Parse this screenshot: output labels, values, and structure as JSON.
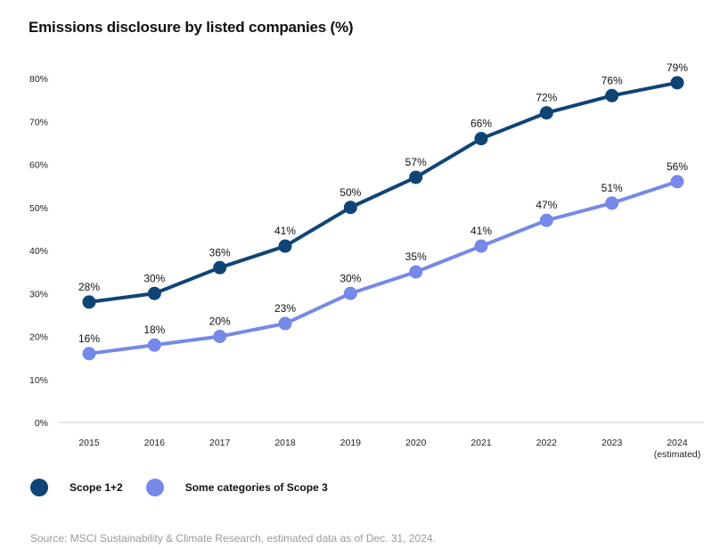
{
  "chart_data": {
    "type": "line",
    "title": "Emissions disclosure by listed companies (%)",
    "xlabel": "",
    "ylabel": "",
    "categories": [
      "2015",
      "2016",
      "2017",
      "2018",
      "2019",
      "2020",
      "2021",
      "2022",
      "2023",
      "2024"
    ],
    "category_sublabels": [
      "",
      "",
      "",
      "",
      "",
      "",
      "",
      "",
      "",
      "(estimated)"
    ],
    "yticks": [
      "0%",
      "10%",
      "20%",
      "30%",
      "40%",
      "50%",
      "60%",
      "70%",
      "80%"
    ],
    "ylim": [
      0,
      80
    ],
    "grid": false,
    "legend_position": "bottom-left",
    "series": [
      {
        "name": "Scope 1+2",
        "color": "#0f4476",
        "values": [
          28,
          30,
          36,
          41,
          50,
          57,
          66,
          72,
          76,
          79
        ],
        "labels": [
          "28%",
          "30%",
          "36%",
          "41%",
          "50%",
          "57%",
          "66%",
          "72%",
          "76%",
          "79%"
        ]
      },
      {
        "name": "Some categories of Scope 3",
        "color": "#7589e8",
        "values": [
          16,
          18,
          20,
          23,
          30,
          35,
          41,
          47,
          51,
          56
        ],
        "labels": [
          "16%",
          "18%",
          "20%",
          "23%",
          "30%",
          "35%",
          "41%",
          "47%",
          "51%",
          "56%"
        ]
      }
    ],
    "source": "Source: MSCI Sustainability & Climate Research, estimated data as of Dec. 31, 2024."
  }
}
